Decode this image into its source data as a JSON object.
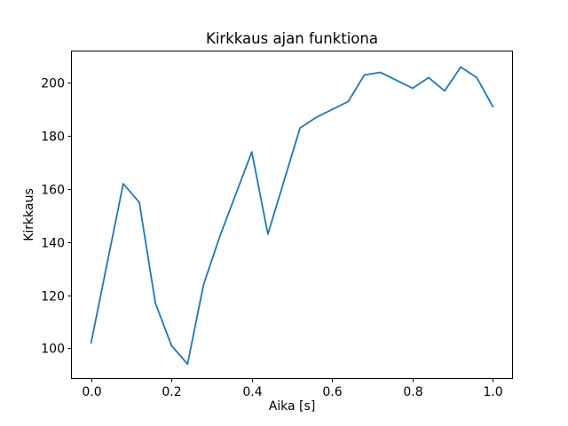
{
  "chart_data": {
    "type": "line",
    "title": "Kirkkaus ajan funktiona",
    "xlabel": "Aika [s]",
    "ylabel": "Kirkkaus",
    "x": [
      0.0,
      0.04,
      0.08,
      0.12,
      0.16,
      0.2,
      0.24,
      0.28,
      0.32,
      0.36,
      0.4,
      0.44,
      0.48,
      0.52,
      0.56,
      0.6,
      0.64,
      0.68,
      0.72,
      0.76,
      0.8,
      0.84,
      0.88,
      0.92,
      0.96,
      1.0
    ],
    "y": [
      102,
      132,
      162,
      155,
      117,
      101,
      94,
      124,
      142,
      158,
      174,
      143,
      163,
      183,
      187,
      190,
      193,
      203,
      204,
      201,
      198,
      202,
      197,
      206,
      202,
      191
    ],
    "xlim": [
      -0.05,
      1.05
    ],
    "ylim": [
      88.4,
      212.2
    ],
    "xticks": [
      0.0,
      0.2,
      0.4,
      0.6,
      0.8,
      1.0
    ],
    "xtick_labels": [
      "0.0",
      "0.2",
      "0.4",
      "0.6",
      "0.8",
      "1.0"
    ],
    "yticks": [
      100,
      120,
      140,
      160,
      180,
      200
    ],
    "ytick_labels": [
      "100",
      "120",
      "140",
      "160",
      "180",
      "200"
    ],
    "grid": false,
    "legend": null,
    "line_color": "#1f77b4",
    "axis_color": "#000000",
    "background_color": "#ffffff"
  }
}
